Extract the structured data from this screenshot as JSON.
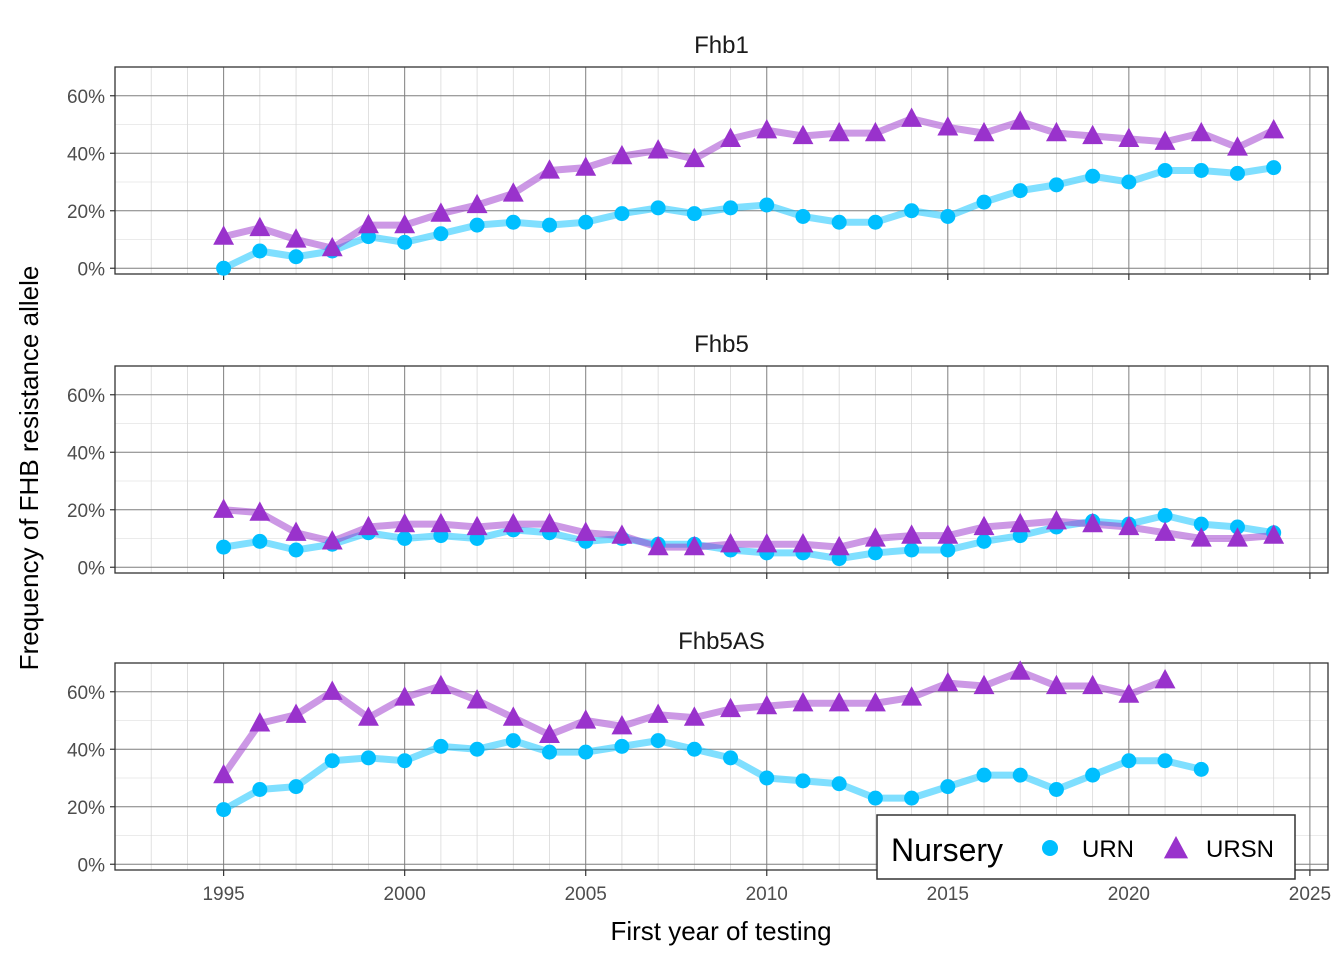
{
  "chart_data": {
    "type": "line",
    "xlabel": "First year of testing",
    "ylabel": "Frequency of FHB resistance allele",
    "xlim": [
      1992,
      2025.5
    ],
    "ylim": [
      -0.02,
      0.7
    ],
    "x_ticks": [
      1995,
      2000,
      2005,
      2010,
      2015,
      2020,
      2025
    ],
    "y_ticks": [
      0,
      0.2,
      0.4,
      0.6
    ],
    "y_tick_labels": [
      "0%",
      "20%",
      "40%",
      "60%"
    ],
    "grid": true,
    "legend": {
      "title": "Nursery",
      "position": "bottom-right",
      "entries": [
        "URN",
        "URSN"
      ]
    },
    "colors": {
      "URN": "#00BFFF",
      "URSN": "#9932CC"
    },
    "markers": {
      "URN": "circle",
      "URSN": "triangle"
    },
    "panels": [
      {
        "title": "Fhb1",
        "series": [
          {
            "name": "URN",
            "x": [
              1995,
              1996,
              1997,
              1998,
              1999,
              2000,
              2001,
              2002,
              2003,
              2004,
              2005,
              2006,
              2007,
              2008,
              2009,
              2010,
              2011,
              2012,
              2013,
              2014,
              2015,
              2016,
              2017,
              2018,
              2019,
              2020,
              2021,
              2022,
              2023,
              2024
            ],
            "values": [
              0.0,
              0.06,
              0.04,
              0.06,
              0.11,
              0.09,
              0.12,
              0.15,
              0.16,
              0.15,
              0.16,
              0.19,
              0.21,
              0.19,
              0.21,
              0.22,
              0.18,
              0.16,
              0.16,
              0.2,
              0.18,
              0.23,
              0.27,
              0.29,
              0.32,
              0.3,
              0.34,
              0.34,
              0.33,
              0.35
            ]
          },
          {
            "name": "URSN",
            "x": [
              1995,
              1996,
              1997,
              1998,
              1999,
              2000,
              2001,
              2002,
              2003,
              2004,
              2005,
              2006,
              2007,
              2008,
              2009,
              2010,
              2011,
              2012,
              2013,
              2014,
              2015,
              2016,
              2017,
              2018,
              2019,
              2020,
              2021,
              2022,
              2023,
              2024
            ],
            "values": [
              0.11,
              0.14,
              0.1,
              0.07,
              0.15,
              0.15,
              0.19,
              0.22,
              0.26,
              0.34,
              0.35,
              0.39,
              0.41,
              0.38,
              0.45,
              0.48,
              0.46,
              0.47,
              0.47,
              0.52,
              0.49,
              0.47,
              0.51,
              0.47,
              0.46,
              0.45,
              0.44,
              0.47,
              0.42,
              0.48
            ]
          }
        ]
      },
      {
        "title": "Fhb5",
        "series": [
          {
            "name": "URN",
            "x": [
              1995,
              1996,
              1997,
              1998,
              1999,
              2000,
              2001,
              2002,
              2003,
              2004,
              2005,
              2006,
              2007,
              2008,
              2009,
              2010,
              2011,
              2012,
              2013,
              2014,
              2015,
              2016,
              2017,
              2018,
              2019,
              2020,
              2021,
              2022,
              2023,
              2024
            ],
            "values": [
              0.07,
              0.09,
              0.06,
              0.08,
              0.12,
              0.1,
              0.11,
              0.1,
              0.13,
              0.12,
              0.09,
              0.1,
              0.08,
              0.08,
              0.06,
              0.05,
              0.05,
              0.03,
              0.05,
              0.06,
              0.06,
              0.09,
              0.11,
              0.14,
              0.16,
              0.15,
              0.18,
              0.15,
              0.14,
              0.12
            ]
          },
          {
            "name": "URSN",
            "x": [
              1995,
              1996,
              1997,
              1998,
              1999,
              2000,
              2001,
              2002,
              2003,
              2004,
              2005,
              2006,
              2007,
              2008,
              2009,
              2010,
              2011,
              2012,
              2013,
              2014,
              2015,
              2016,
              2017,
              2018,
              2019,
              2020,
              2021,
              2022,
              2023,
              2024
            ],
            "values": [
              0.2,
              0.19,
              0.12,
              0.09,
              0.14,
              0.15,
              0.15,
              0.14,
              0.15,
              0.15,
              0.12,
              0.11,
              0.07,
              0.07,
              0.08,
              0.08,
              0.08,
              0.07,
              0.1,
              0.11,
              0.11,
              0.14,
              0.15,
              0.16,
              0.15,
              0.14,
              0.12,
              0.1,
              0.1,
              0.11
            ]
          }
        ]
      },
      {
        "title": "Fhb5AS",
        "series": [
          {
            "name": "URN",
            "x": [
              1995,
              1996,
              1997,
              1998,
              1999,
              2000,
              2001,
              2002,
              2003,
              2004,
              2005,
              2006,
              2007,
              2008,
              2009,
              2010,
              2011,
              2012,
              2013,
              2014,
              2015,
              2016,
              2017,
              2018,
              2019,
              2020,
              2021,
              2022
            ],
            "values": [
              0.19,
              0.26,
              0.27,
              0.36,
              0.37,
              0.36,
              0.41,
              0.4,
              0.43,
              0.39,
              0.39,
              0.41,
              0.43,
              0.4,
              0.37,
              0.3,
              0.29,
              0.28,
              0.23,
              0.23,
              0.27,
              0.31,
              0.31,
              0.26,
              0.31,
              0.36,
              0.36,
              0.33
            ]
          },
          {
            "name": "URSN",
            "x": [
              1995,
              1996,
              1997,
              1998,
              1999,
              2000,
              2001,
              2002,
              2003,
              2004,
              2005,
              2006,
              2007,
              2008,
              2009,
              2010,
              2011,
              2012,
              2013,
              2014,
              2015,
              2016,
              2017,
              2018,
              2019,
              2020,
              2021
            ],
            "values": [
              0.31,
              0.49,
              0.52,
              0.6,
              0.51,
              0.58,
              0.62,
              0.57,
              0.51,
              0.45,
              0.5,
              0.48,
              0.52,
              0.51,
              0.54,
              0.55,
              0.56,
              0.56,
              0.56,
              0.58,
              0.63,
              0.62,
              0.67,
              0.62,
              0.62,
              0.59,
              0.64
            ]
          }
        ]
      }
    ]
  }
}
